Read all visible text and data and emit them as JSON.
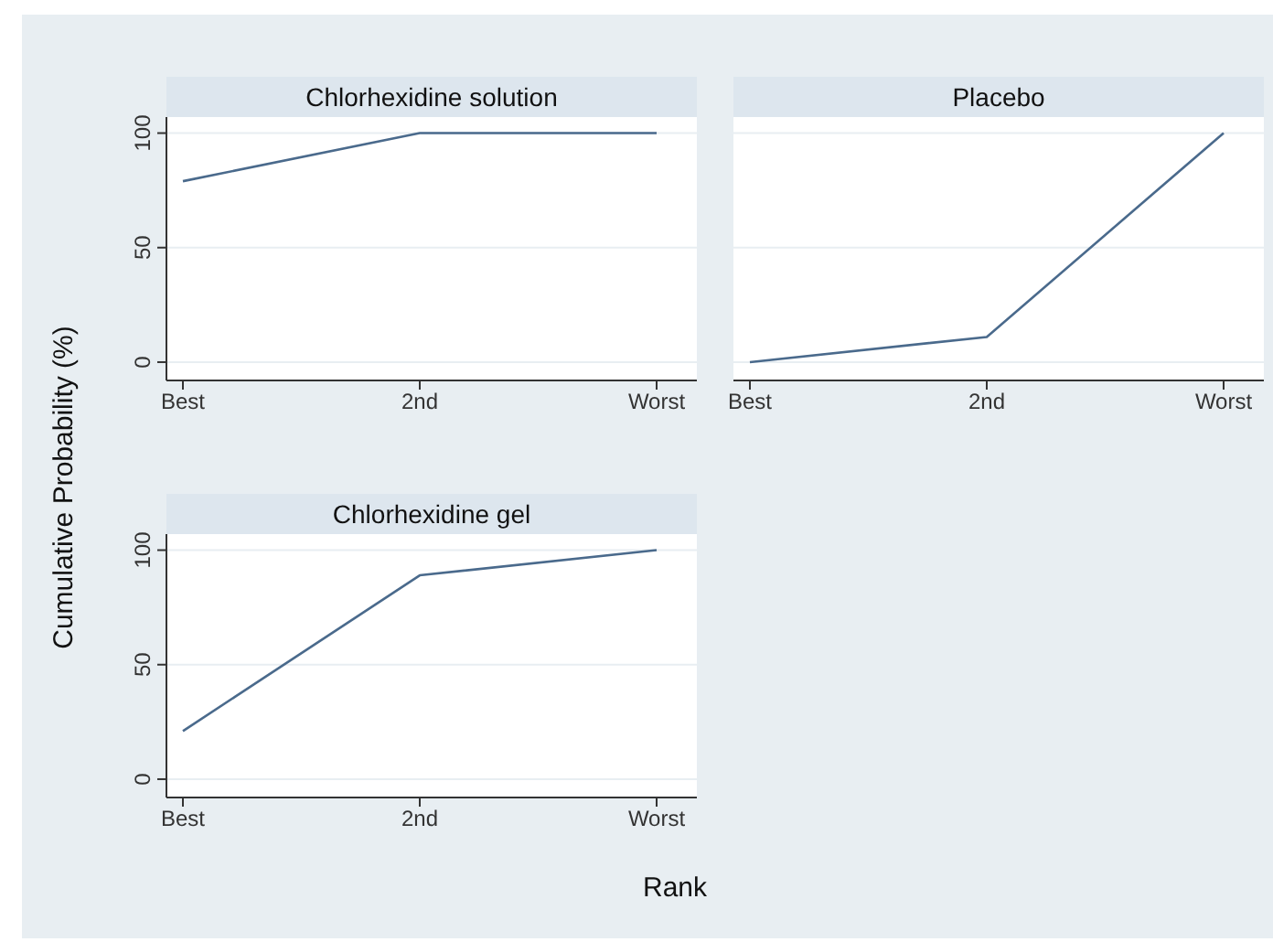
{
  "chart_data": [
    {
      "type": "line",
      "title": "Chlorhexidine solution",
      "ylabel": "Cumulative Probability (%)",
      "categories": [
        "Best",
        "2nd",
        "Worst"
      ],
      "series": [
        {
          "color": "#4a6a8c",
          "values": [
            79,
            100,
            100
          ]
        }
      ],
      "ylim": [
        -8,
        107
      ],
      "yticks": [
        0,
        50,
        100
      ],
      "grid": "y",
      "legend": false,
      "marker": "none",
      "line_style": "solid"
    },
    {
      "type": "line",
      "title": "Placebo",
      "categories": [
        "Best",
        "2nd",
        "Worst"
      ],
      "series": [
        {
          "color": "#4a6a8c",
          "values": [
            0,
            11,
            100
          ]
        }
      ],
      "ylim": [
        -8,
        107
      ],
      "yticks": [
        0,
        50,
        100
      ],
      "grid": "y",
      "legend": false,
      "marker": "none",
      "line_style": "solid",
      "tick_labels": "x"
    },
    {
      "type": "line",
      "title": "Chlorhexidine gel",
      "xlabel": "Rank",
      "categories": [
        "Best",
        "2nd",
        "Worst"
      ],
      "series": [
        {
          "color": "#4a6a8c",
          "values": [
            21,
            89,
            100
          ]
        }
      ],
      "ylim": [
        -8,
        107
      ],
      "yticks": [
        0,
        50,
        100
      ],
      "grid": "y",
      "legend": false,
      "marker": "none",
      "line_style": "solid"
    }
  ]
}
